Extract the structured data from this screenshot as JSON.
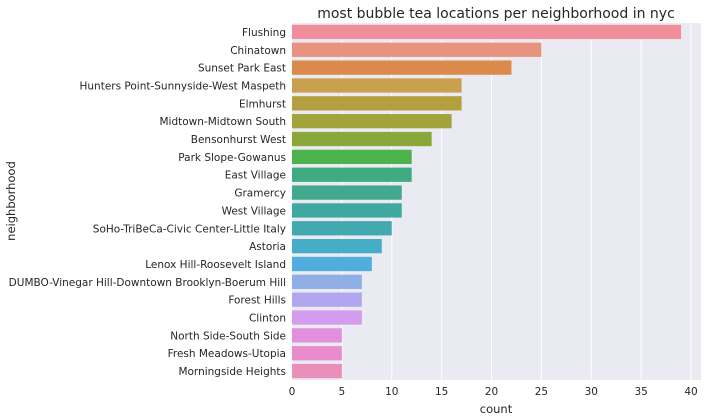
{
  "chart_data": {
    "type": "bar",
    "orientation": "horizontal",
    "title": "most bubble tea locations per neighborhood in nyc",
    "xlabel": "count",
    "ylabel": "neighborhood",
    "xlim": [
      0,
      41
    ],
    "x_ticks": [
      0,
      5,
      10,
      15,
      20,
      25,
      30,
      35,
      40
    ],
    "grid": "vertical lines",
    "background": "#eaeaf2",
    "categories": [
      "Flushing",
      "Chinatown",
      "Sunset Park East",
      "Hunters Point-Sunnyside-West Maspeth",
      "Elmhurst",
      "Midtown-Midtown South",
      "Bensonhurst West",
      "Park Slope-Gowanus",
      "East Village",
      "Gramercy",
      "West Village",
      "SoHo-TriBeCa-Civic Center-Little Italy",
      "Astoria",
      "Lenox Hill-Roosevelt Island",
      "DUMBO-Vinegar Hill-Downtown Brooklyn-Boerum Hill",
      "Forest Hills",
      "Clinton",
      "North Side-South Side",
      "Fresh Meadows-Utopia",
      "Morningside Heights"
    ],
    "values": [
      39,
      25,
      22,
      17,
      17,
      16,
      14,
      12,
      12,
      11,
      11,
      10,
      9,
      8,
      7,
      7,
      7,
      5,
      5,
      5
    ],
    "colors": [
      "#f08e9c",
      "#e89380",
      "#dc8a4b",
      "#c9a04e",
      "#b49f3e",
      "#a3a33c",
      "#8aa73a",
      "#4db34f",
      "#40ab80",
      "#40a98e",
      "#3fa8a0",
      "#42a9ae",
      "#45aec6",
      "#4faedd",
      "#8faee6",
      "#b2a6ee",
      "#d39cec",
      "#e28fde",
      "#e88ccc",
      "#ea8fba"
    ]
  }
}
